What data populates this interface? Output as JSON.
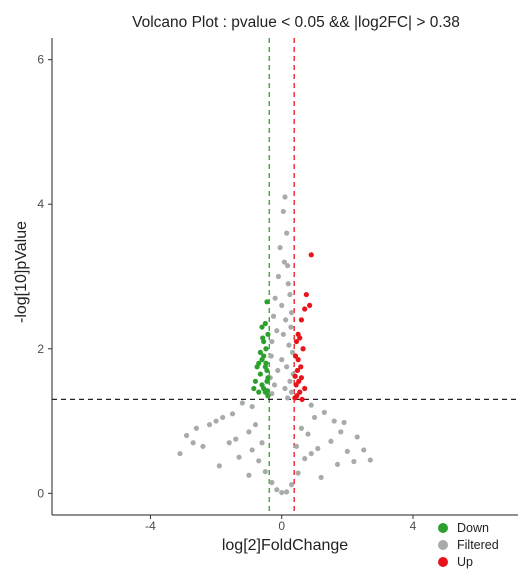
{
  "chart_data": {
    "type": "scatter",
    "title": "Volcano Plot : pvalue < 0.05 && |log2FC| > 0.38",
    "xlabel": "log[2]FoldChange",
    "ylabel": "-log[10]pValue",
    "xlim": [
      -7,
      7.2
    ],
    "ylim": [
      -0.3,
      6.3
    ],
    "xticks": [
      -4,
      0,
      4
    ],
    "xtick_labels": [
      "-4",
      "0",
      "4"
    ],
    "yticks": [
      0,
      2,
      4,
      6
    ],
    "ytick_labels": [
      "0",
      "2",
      "4",
      "6"
    ],
    "grid": false,
    "legend_position": "bottom-right",
    "thresholds": {
      "pvalue_line_y": 1.3,
      "down_line_x": -0.38,
      "up_line_x": 0.38
    },
    "series": [
      {
        "name": "Down",
        "color": "#2ca02c",
        "points": [
          [
            -0.45,
            2.65
          ],
          [
            -0.5,
            2.35
          ],
          [
            -0.6,
            2.3
          ],
          [
            -0.55,
            2.1
          ],
          [
            -0.42,
            2.2
          ],
          [
            -0.48,
            2.0
          ],
          [
            -0.65,
            1.95
          ],
          [
            -0.7,
            1.8
          ],
          [
            -0.75,
            1.75
          ],
          [
            -0.6,
            1.85
          ],
          [
            -0.55,
            1.9
          ],
          [
            -0.45,
            1.7
          ],
          [
            -0.5,
            1.75
          ],
          [
            -0.42,
            1.6
          ],
          [
            -0.8,
            1.55
          ],
          [
            -0.6,
            1.5
          ],
          [
            -0.55,
            1.45
          ],
          [
            -0.45,
            1.55
          ],
          [
            -0.5,
            1.4
          ],
          [
            -0.42,
            1.35
          ],
          [
            -0.7,
            1.4
          ],
          [
            -0.85,
            1.45
          ],
          [
            -0.65,
            1.65
          ],
          [
            -0.48,
            1.8
          ],
          [
            -0.58,
            2.15
          ],
          [
            -0.44,
            1.42
          ]
        ]
      },
      {
        "name": "Filtered",
        "color": "#a7acab",
        "points": [
          [
            0.1,
            4.1
          ],
          [
            0.05,
            3.9
          ],
          [
            0.15,
            3.6
          ],
          [
            -0.05,
            3.4
          ],
          [
            0.08,
            3.2
          ],
          [
            0.18,
            3.15
          ],
          [
            -0.1,
            3.0
          ],
          [
            0.2,
            2.9
          ],
          [
            0.25,
            2.75
          ],
          [
            -0.2,
            2.7
          ],
          [
            0.0,
            2.6
          ],
          [
            0.3,
            2.5
          ],
          [
            -0.25,
            2.45
          ],
          [
            0.12,
            2.4
          ],
          [
            0.28,
            2.3
          ],
          [
            -0.15,
            2.25
          ],
          [
            0.05,
            2.2
          ],
          [
            -0.3,
            2.1
          ],
          [
            0.22,
            2.05
          ],
          [
            0.33,
            1.95
          ],
          [
            -0.32,
            1.9
          ],
          [
            0.0,
            1.85
          ],
          [
            0.15,
            1.75
          ],
          [
            -0.12,
            1.7
          ],
          [
            0.35,
            1.65
          ],
          [
            -0.35,
            1.6
          ],
          [
            0.25,
            1.55
          ],
          [
            -0.22,
            1.5
          ],
          [
            0.1,
            1.45
          ],
          [
            0.3,
            1.4
          ],
          [
            -0.3,
            1.38
          ],
          [
            0.18,
            1.32
          ],
          [
            -1.2,
            1.25
          ],
          [
            -0.9,
            1.2
          ],
          [
            0.9,
            1.22
          ],
          [
            -1.5,
            1.1
          ],
          [
            1.3,
            1.12
          ],
          [
            -1.8,
            1.05
          ],
          [
            1.6,
            1.0
          ],
          [
            -2.2,
            0.95
          ],
          [
            -2.6,
            0.9
          ],
          [
            1.9,
            0.98
          ],
          [
            -1.0,
            0.85
          ],
          [
            0.8,
            0.82
          ],
          [
            -2.9,
            0.8
          ],
          [
            2.3,
            0.78
          ],
          [
            -1.6,
            0.7
          ],
          [
            1.5,
            0.72
          ],
          [
            -2.4,
            0.65
          ],
          [
            1.1,
            0.62
          ],
          [
            -3.1,
            0.55
          ],
          [
            2.0,
            0.58
          ],
          [
            -1.3,
            0.5
          ],
          [
            0.7,
            0.48
          ],
          [
            -0.7,
            0.45
          ],
          [
            2.2,
            0.44
          ],
          [
            2.7,
            0.46
          ],
          [
            1.7,
            0.4
          ],
          [
            -1.9,
            0.38
          ],
          [
            -0.5,
            0.3
          ],
          [
            0.5,
            0.28
          ],
          [
            -1.0,
            0.25
          ],
          [
            1.2,
            0.22
          ],
          [
            -0.3,
            0.15
          ],
          [
            0.3,
            0.12
          ],
          [
            -0.15,
            0.05
          ],
          [
            0.15,
            0.02
          ],
          [
            0.0,
            0.01
          ],
          [
            -2.0,
            1.0
          ],
          [
            1.0,
            1.05
          ],
          [
            -0.8,
            0.95
          ],
          [
            0.6,
            0.9
          ],
          [
            -1.4,
            0.75
          ],
          [
            1.8,
            0.85
          ],
          [
            -0.6,
            0.7
          ],
          [
            0.45,
            0.65
          ],
          [
            -0.9,
            0.6
          ],
          [
            0.9,
            0.55
          ],
          [
            -2.7,
            0.7
          ],
          [
            2.5,
            0.6
          ]
        ]
      },
      {
        "name": "Up",
        "color": "#e8141b",
        "points": [
          [
            0.9,
            3.3
          ],
          [
            0.75,
            2.75
          ],
          [
            0.85,
            2.6
          ],
          [
            0.7,
            2.55
          ],
          [
            0.6,
            2.4
          ],
          [
            0.5,
            2.2
          ],
          [
            0.55,
            2.15
          ],
          [
            0.45,
            2.1
          ],
          [
            0.65,
            2.0
          ],
          [
            0.5,
            1.85
          ],
          [
            0.42,
            1.9
          ],
          [
            0.48,
            1.7
          ],
          [
            0.6,
            1.6
          ],
          [
            0.52,
            1.55
          ],
          [
            0.44,
            1.5
          ],
          [
            0.7,
            1.45
          ],
          [
            0.55,
            1.4
          ],
          [
            0.46,
            1.35
          ],
          [
            0.62,
            1.3
          ],
          [
            0.4,
            1.32
          ],
          [
            0.58,
            1.75
          ],
          [
            0.41,
            1.62
          ]
        ]
      }
    ]
  }
}
